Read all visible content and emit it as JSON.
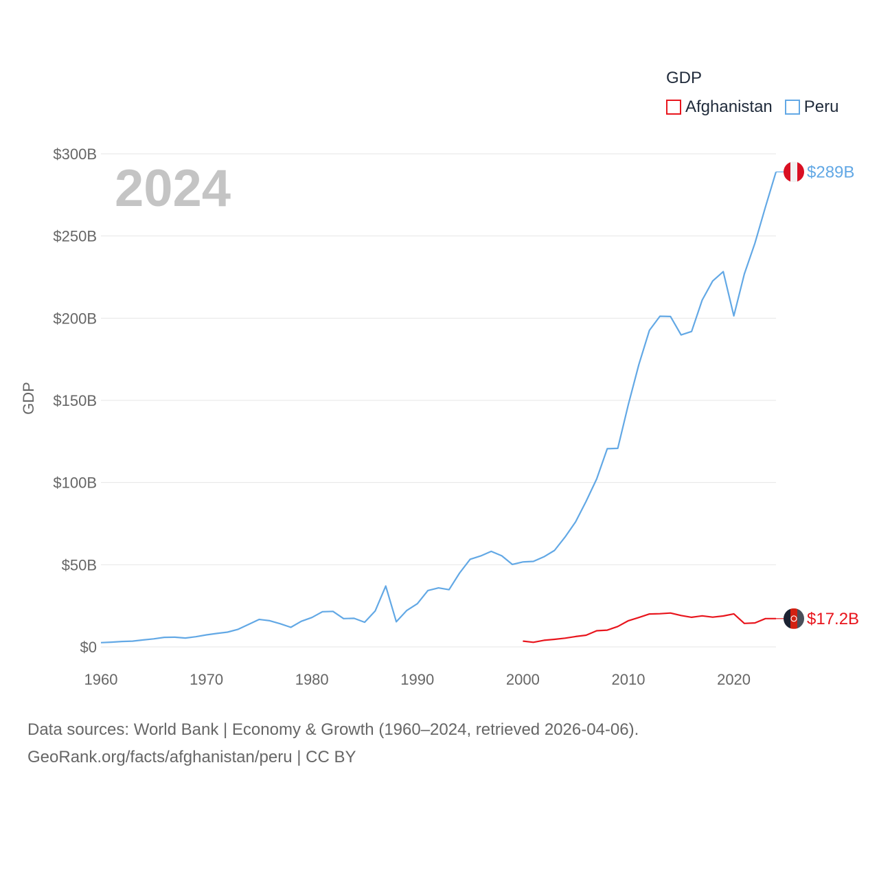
{
  "chart_data": {
    "type": "line",
    "title": "",
    "ylabel": "GDP",
    "xlabel": "",
    "year_label": "2024",
    "legend_title": "GDP",
    "xlim": [
      1960,
      2024
    ],
    "ylim": [
      0,
      300
    ],
    "x_ticks": [
      1960,
      1970,
      1980,
      1990,
      2000,
      2010,
      2020
    ],
    "y_ticks": [
      {
        "value": 0,
        "label": "$0"
      },
      {
        "value": 50,
        "label": "$50B"
      },
      {
        "value": 100,
        "label": "$100B"
      },
      {
        "value": 150,
        "label": "$150B"
      },
      {
        "value": 200,
        "label": "$200B"
      },
      {
        "value": 250,
        "label": "$250B"
      },
      {
        "value": 300,
        "label": "$300B"
      }
    ],
    "series": [
      {
        "name": "Afghanistan",
        "color": "#e8141c",
        "end_label": "$17.2B",
        "flag": "afghanistan-flag",
        "x": [
          2000,
          2001,
          2002,
          2003,
          2004,
          2005,
          2006,
          2007,
          2008,
          2009,
          2010,
          2011,
          2012,
          2013,
          2014,
          2015,
          2016,
          2017,
          2018,
          2019,
          2020,
          2021,
          2022,
          2023,
          2024
        ],
        "values": [
          3.5,
          2.8,
          4.0,
          4.6,
          5.3,
          6.3,
          7.1,
          9.8,
          10.2,
          12.4,
          15.9,
          17.9,
          20.0,
          20.2,
          20.6,
          19.1,
          18.0,
          18.9,
          18.1,
          18.8,
          20.1,
          14.3,
          14.6,
          17.2,
          17.2
        ]
      },
      {
        "name": "Peru",
        "color": "#62a8e5",
        "end_label": "$289B",
        "flag": "peru-flag",
        "x": [
          1960,
          1961,
          1962,
          1963,
          1964,
          1965,
          1966,
          1967,
          1968,
          1969,
          1970,
          1971,
          1972,
          1973,
          1974,
          1975,
          1976,
          1977,
          1978,
          1979,
          1980,
          1981,
          1982,
          1983,
          1984,
          1985,
          1986,
          1987,
          1988,
          1989,
          1990,
          1991,
          1992,
          1993,
          1994,
          1995,
          1996,
          1997,
          1998,
          1999,
          2000,
          2001,
          2002,
          2003,
          2004,
          2005,
          2006,
          2007,
          2008,
          2009,
          2010,
          2011,
          2012,
          2013,
          2014,
          2015,
          2016,
          2017,
          2018,
          2019,
          2020,
          2021,
          2022,
          2023,
          2024
        ],
        "values": [
          2.6,
          2.9,
          3.3,
          3.5,
          4.2,
          4.9,
          5.8,
          5.9,
          5.4,
          6.2,
          7.3,
          8.2,
          9.0,
          10.7,
          13.7,
          16.7,
          15.9,
          14.1,
          11.9,
          15.6,
          17.9,
          21.4,
          21.6,
          17.2,
          17.4,
          15.0,
          21.8,
          37.0,
          15.3,
          22.2,
          26.3,
          34.3,
          35.9,
          34.8,
          44.9,
          53.3,
          55.3,
          58.1,
          55.4,
          50.2,
          51.7,
          52.0,
          54.8,
          58.7,
          66.8,
          76.1,
          88.6,
          102.2,
          120.6,
          120.8,
          147.5,
          171.8,
          192.6,
          201.2,
          201.0,
          189.8,
          191.9,
          211.0,
          222.6,
          228.3,
          201.4,
          226.9,
          245.6,
          267.6,
          289.0
        ]
      }
    ]
  },
  "footer": {
    "line1": "Data sources: World Bank | Economy & Growth (1960–2024, retrieved 2026-04-06).",
    "line2": "GeoRank.org/facts/afghanistan/peru | CC BY"
  }
}
